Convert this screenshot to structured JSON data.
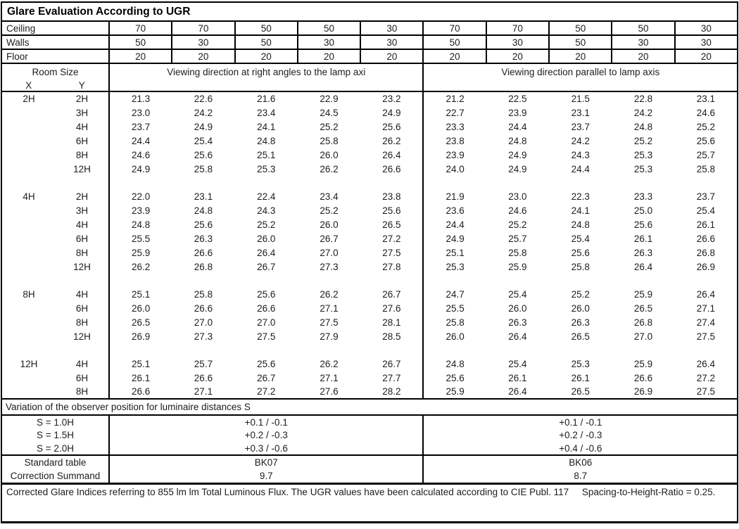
{
  "title": "Glare Evaluation According to UGR",
  "surface_rows": [
    {
      "label": "Ceiling",
      "values": [
        "70",
        "70",
        "50",
        "50",
        "30",
        "70",
        "70",
        "50",
        "50",
        "30"
      ]
    },
    {
      "label": "Walls",
      "values": [
        "50",
        "30",
        "50",
        "30",
        "30",
        "50",
        "30",
        "50",
        "30",
        "30"
      ]
    },
    {
      "label": "Floor",
      "values": [
        "20",
        "20",
        "20",
        "20",
        "20",
        "20",
        "20",
        "20",
        "20",
        "20"
      ]
    }
  ],
  "header": {
    "room_size": "Room Size",
    "x": "X",
    "y": "Y",
    "left_heading": "Viewing direction at right angles to the lamp axi",
    "right_heading": "Viewing direction parallel to lamp axis"
  },
  "ugr_blocks": [
    {
      "x": "2H",
      "rows": [
        {
          "y": "2H",
          "values": [
            "21.3",
            "22.6",
            "21.6",
            "22.9",
            "23.2",
            "21.2",
            "22.5",
            "21.5",
            "22.8",
            "23.1"
          ]
        },
        {
          "y": "3H",
          "values": [
            "23.0",
            "24.2",
            "23.4",
            "24.5",
            "24.9",
            "22.7",
            "23.9",
            "23.1",
            "24.2",
            "24.6"
          ]
        },
        {
          "y": "4H",
          "values": [
            "23.7",
            "24.9",
            "24.1",
            "25.2",
            "25.6",
            "23.3",
            "24.4",
            "23.7",
            "24.8",
            "25.2"
          ]
        },
        {
          "y": "6H",
          "values": [
            "24.4",
            "25.4",
            "24.8",
            "25.8",
            "26.2",
            "23.8",
            "24.8",
            "24.2",
            "25.2",
            "25.6"
          ]
        },
        {
          "y": "8H",
          "values": [
            "24.6",
            "25.6",
            "25.1",
            "26.0",
            "26.4",
            "23.9",
            "24.9",
            "24.3",
            "25.3",
            "25.7"
          ]
        },
        {
          "y": "12H",
          "values": [
            "24.9",
            "25.8",
            "25.3",
            "26.2",
            "26.6",
            "24.0",
            "24.9",
            "24.4",
            "25.3",
            "25.8"
          ]
        }
      ]
    },
    {
      "x": "4H",
      "rows": [
        {
          "y": "2H",
          "values": [
            "22.0",
            "23.1",
            "22.4",
            "23.4",
            "23.8",
            "21.9",
            "23.0",
            "22.3",
            "23.3",
            "23.7"
          ]
        },
        {
          "y": "3H",
          "values": [
            "23.9",
            "24.8",
            "24.3",
            "25.2",
            "25.6",
            "23.6",
            "24.6",
            "24.1",
            "25.0",
            "25.4"
          ]
        },
        {
          "y": "4H",
          "values": [
            "24.8",
            "25.6",
            "25.2",
            "26.0",
            "26.5",
            "24.4",
            "25.2",
            "24.8",
            "25.6",
            "26.1"
          ]
        },
        {
          "y": "6H",
          "values": [
            "25.5",
            "26.3",
            "26.0",
            "26.7",
            "27.2",
            "24.9",
            "25.7",
            "25.4",
            "26.1",
            "26.6"
          ]
        },
        {
          "y": "8H",
          "values": [
            "25.9",
            "26.6",
            "26.4",
            "27.0",
            "27.5",
            "25.1",
            "25.8",
            "25.6",
            "26.3",
            "26.8"
          ]
        },
        {
          "y": "12H",
          "values": [
            "26.2",
            "26.8",
            "26.7",
            "27.3",
            "27.8",
            "25.3",
            "25.9",
            "25.8",
            "26.4",
            "26.9"
          ]
        }
      ]
    },
    {
      "x": "8H",
      "rows": [
        {
          "y": "4H",
          "values": [
            "25.1",
            "25.8",
            "25.6",
            "26.2",
            "26.7",
            "24.7",
            "25.4",
            "25.2",
            "25.9",
            "26.4"
          ]
        },
        {
          "y": "6H",
          "values": [
            "26.0",
            "26.6",
            "26.6",
            "27.1",
            "27.6",
            "25.5",
            "26.0",
            "26.0",
            "26.5",
            "27.1"
          ]
        },
        {
          "y": "8H",
          "values": [
            "26.5",
            "27.0",
            "27.0",
            "27.5",
            "28.1",
            "25.8",
            "26.3",
            "26.3",
            "26.8",
            "27.4"
          ]
        },
        {
          "y": "12H",
          "values": [
            "26.9",
            "27.3",
            "27.5",
            "27.9",
            "28.5",
            "26.0",
            "26.4",
            "26.5",
            "27.0",
            "27.5"
          ]
        }
      ]
    },
    {
      "x": "12H",
      "rows": [
        {
          "y": "4H",
          "values": [
            "25.1",
            "25.7",
            "25.6",
            "26.2",
            "26.7",
            "24.8",
            "25.4",
            "25.3",
            "25.9",
            "26.4"
          ]
        },
        {
          "y": "6H",
          "values": [
            "26.1",
            "26.6",
            "26.7",
            "27.1",
            "27.7",
            "25.6",
            "26.1",
            "26.1",
            "26.6",
            "27.2"
          ]
        },
        {
          "y": "8H",
          "values": [
            "26.6",
            "27.1",
            "27.2",
            "27.6",
            "28.2",
            "25.9",
            "26.4",
            "26.5",
            "26.9",
            "27.5"
          ]
        }
      ]
    }
  ],
  "variation": {
    "heading": "Variation of the observer position for luminaire distances S",
    "rows": [
      {
        "label": "S = 1.0H",
        "left": "+0.1 / -0.1",
        "right": "+0.1 / -0.1"
      },
      {
        "label": "S = 1.5H",
        "left": "+0.2 / -0.3",
        "right": "+0.2 / -0.3"
      },
      {
        "label": "S = 2.0H",
        "left": "+0.3 / -0.6",
        "right": "+0.4 / -0.6"
      }
    ]
  },
  "summary": {
    "rows": [
      {
        "label": "Standard table",
        "left": "BK07",
        "right": "BK06"
      },
      {
        "label": "Correction Summand",
        "left": "9.7",
        "right": "8.7"
      }
    ]
  },
  "footer": "Corrected Glare Indices referring to 855 lm lm Total Luminous Flux. The UGR values have been calculated according to CIE Publ. 117     Spacing-to-Height-Ratio = 0.25."
}
